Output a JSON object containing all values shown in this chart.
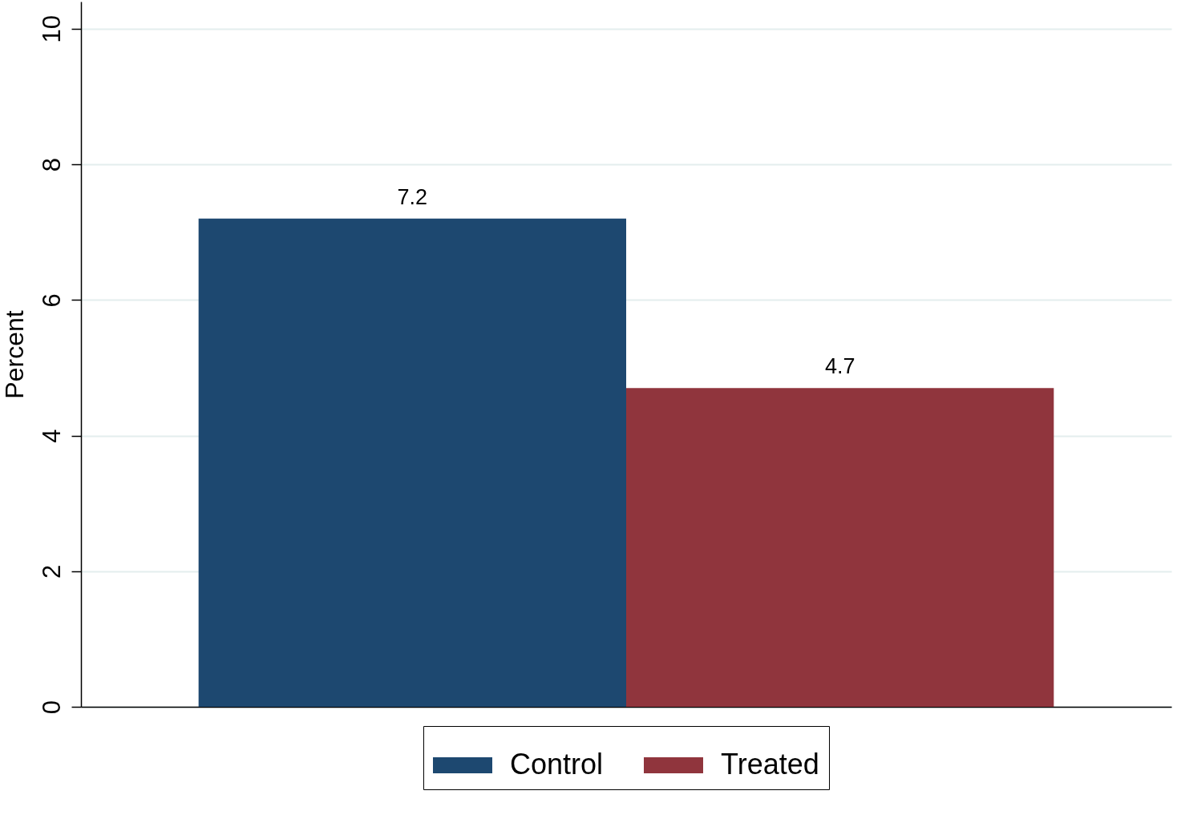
{
  "chart_data": {
    "type": "bar",
    "ylabel": "Percent",
    "categories": [
      null
    ],
    "series": [
      {
        "name": "Control",
        "color": "#1d4870",
        "values": [
          7.2
        ]
      },
      {
        "name": "Treated",
        "color": "#90353d",
        "values": [
          4.7
        ]
      }
    ],
    "ylim": [
      0,
      10.4
    ],
    "yticks": [
      0,
      2,
      4,
      6,
      8,
      10
    ],
    "grid": "y",
    "legend": "bottom",
    "data_labels": true
  }
}
